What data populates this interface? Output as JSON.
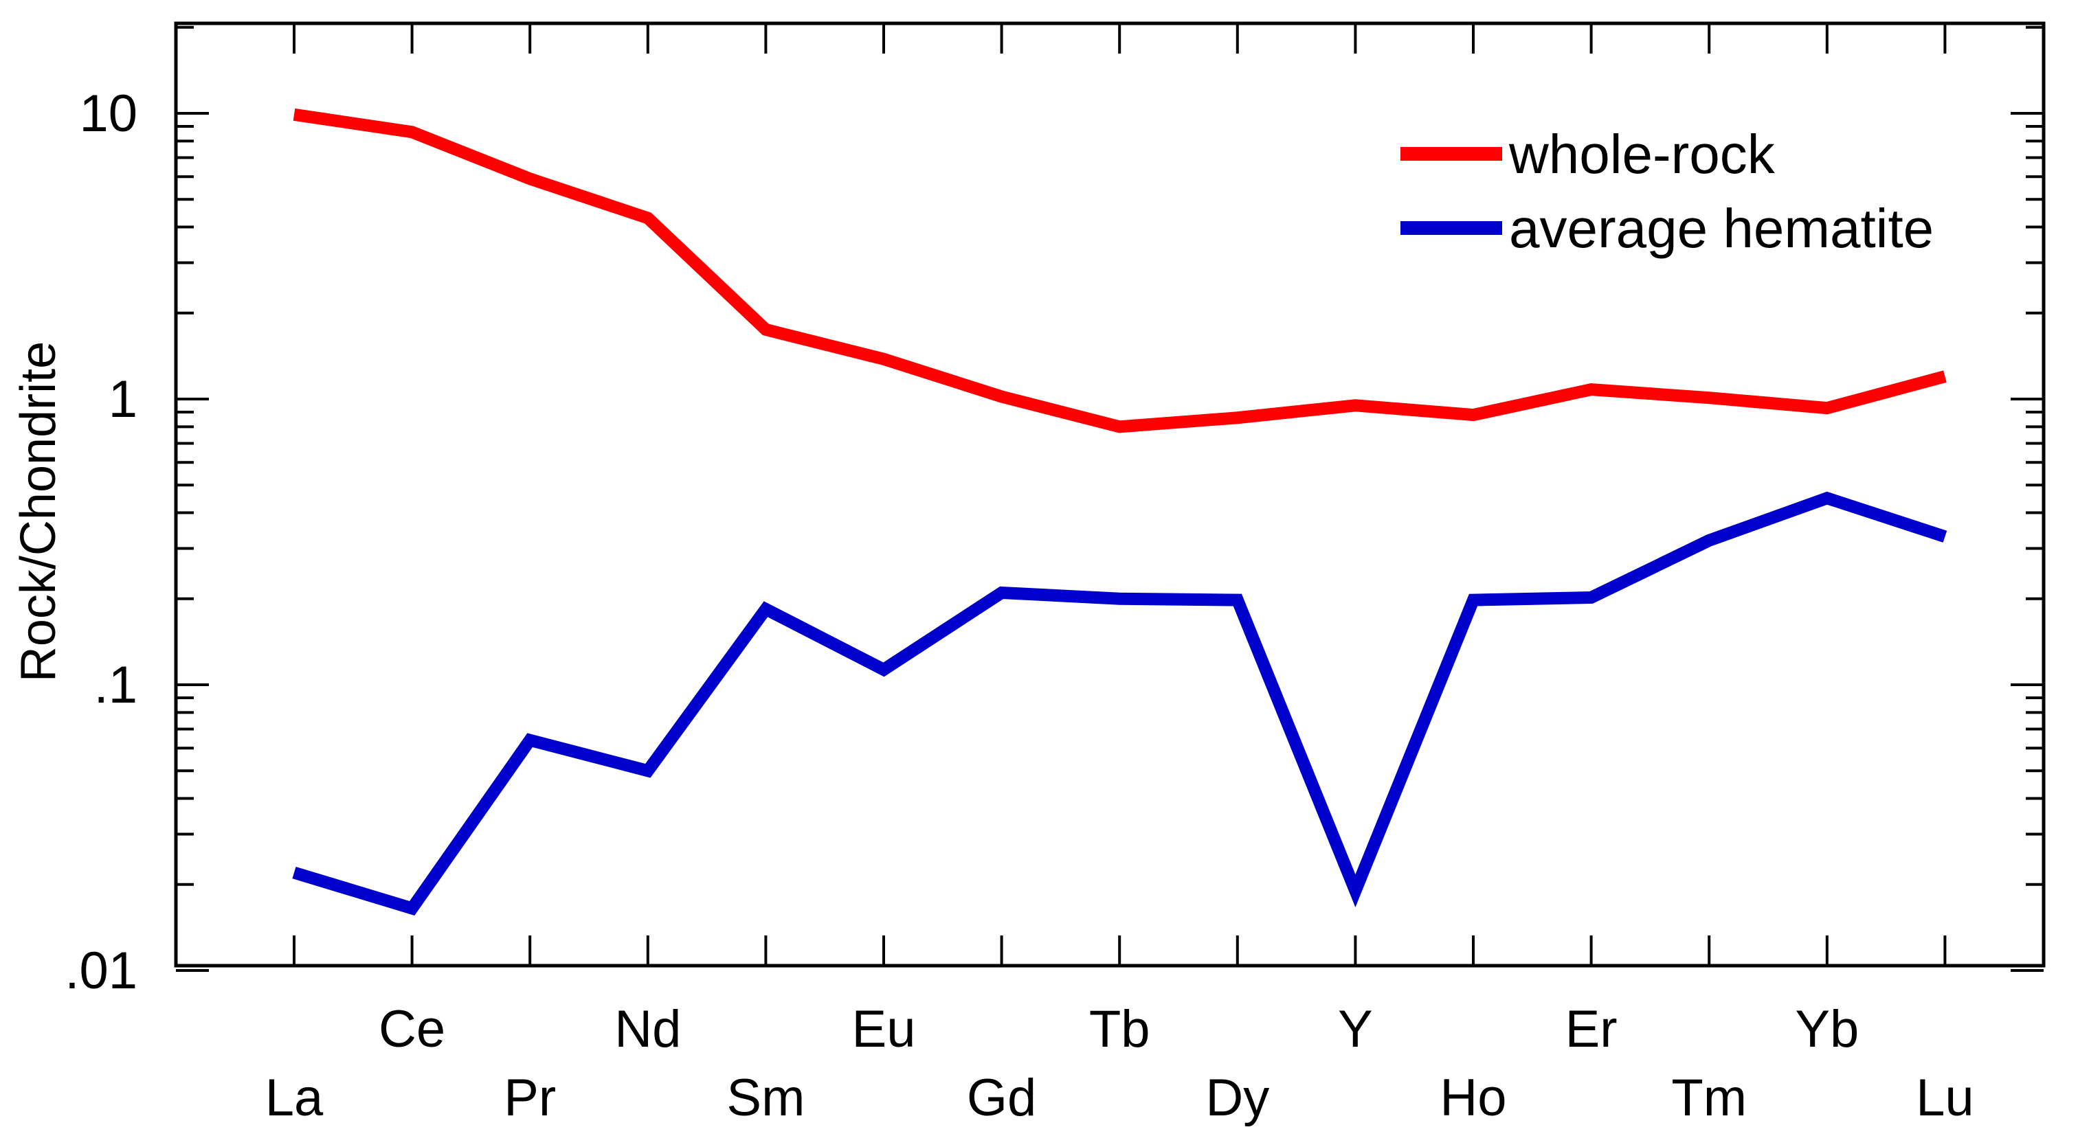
{
  "chart_data": {
    "type": "line",
    "title": "",
    "xlabel": "",
    "ylabel": "Rock/Chondrite",
    "yscale": "log",
    "ylim": [
      0.01,
      20
    ],
    "yticks": [
      {
        "value": 10,
        "label": "10"
      },
      {
        "value": 1,
        "label": "1"
      },
      {
        "value": 0.1,
        "label": ".1"
      },
      {
        "value": 0.01,
        "label": ".01"
      }
    ],
    "categories": [
      "La",
      "Ce",
      "Pr",
      "Nd",
      "Sm",
      "Eu",
      "Gd",
      "Tb",
      "Dy",
      "Y",
      "Ho",
      "Er",
      "Tm",
      "Yb",
      "Lu"
    ],
    "grid": false,
    "legend_position": "top-right",
    "series": [
      {
        "name": "whole-rock",
        "color": "#ff0000",
        "values": [
          9.9,
          8.6,
          5.9,
          4.3,
          1.75,
          1.38,
          1.02,
          0.8,
          0.86,
          0.95,
          0.88,
          1.08,
          1.01,
          0.93,
          1.2
        ]
      },
      {
        "name": "average hematite",
        "color": "#0000cc",
        "values": [
          0.022,
          0.0165,
          0.064,
          0.05,
          0.184,
          0.113,
          0.21,
          0.2,
          0.198,
          0.019,
          0.198,
          0.202,
          0.32,
          0.45,
          0.33
        ]
      }
    ]
  }
}
